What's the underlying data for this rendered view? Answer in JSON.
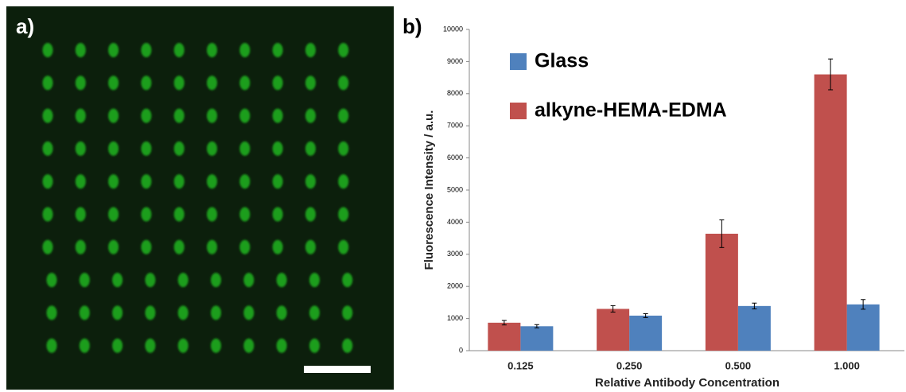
{
  "panel_labels": [
    "a)",
    "b)"
  ],
  "chart_data": {
    "type": "bar",
    "x_label": "Relative Antibody Concentration",
    "y_label": "Fluorescence Intensity / a.u.",
    "categories": [
      "0.125",
      "0.250",
      "0.500",
      "1.000"
    ],
    "series": [
      {
        "name": "Glass",
        "color": "#4f81bd",
        "values": [
          760,
          1090,
          1390,
          1440
        ],
        "errors": [
          50,
          60,
          90,
          150
        ]
      },
      {
        "name": "alkyne-HEMA-EDMA",
        "color": "#c0504d",
        "values": [
          870,
          1300,
          3640,
          8600
        ],
        "errors": [
          70,
          100,
          430,
          480
        ]
      }
    ],
    "ylim": [
      0,
      10000
    ],
    "yticks": [
      0,
      1000,
      2000,
      3000,
      4000,
      5000,
      6000,
      7000,
      8000,
      9000,
      10000
    ],
    "grid": false
  }
}
